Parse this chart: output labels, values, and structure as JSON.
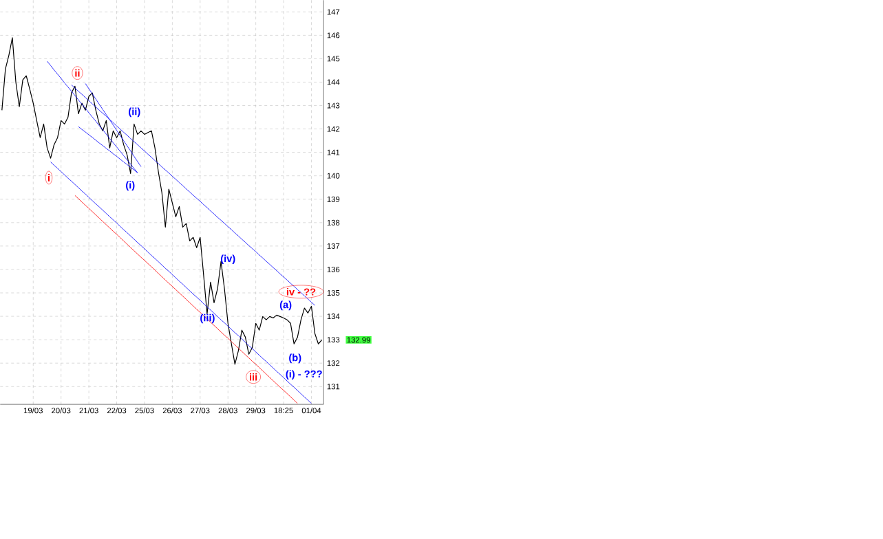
{
  "chart_data": {
    "type": "line",
    "categories": [
      null,
      null,
      null,
      null,
      null,
      null,
      null,
      null,
      null,
      "19/03",
      null,
      null,
      null,
      null,
      null,
      null,
      null,
      "20/03",
      null,
      null,
      null,
      null,
      null,
      null,
      null,
      "21/03",
      null,
      null,
      null,
      null,
      null,
      null,
      null,
      "22/03",
      null,
      null,
      null,
      null,
      null,
      null,
      null,
      "25/03",
      null,
      null,
      null,
      null,
      null,
      null,
      null,
      "26/03",
      null,
      null,
      null,
      null,
      null,
      null,
      null,
      "27/03",
      null,
      null,
      null,
      null,
      null,
      null,
      null,
      "28/03",
      null,
      null,
      null,
      null,
      null,
      null,
      null,
      "29/03",
      null,
      null,
      null,
      null,
      null,
      null,
      null,
      "18:25",
      null,
      null,
      null,
      null,
      null,
      null,
      null,
      "01/04",
      null,
      null,
      null
    ],
    "series": [
      {
        "color": "#000000",
        "values": [
          142.8,
          144.56,
          145.15,
          145.9,
          144.0,
          142.95,
          144.1,
          144.27,
          143.7,
          143.1,
          142.36,
          141.63,
          142.21,
          141.19,
          140.75,
          141.33,
          141.63,
          142.36,
          142.21,
          142.5,
          143.54,
          143.83,
          142.65,
          143.1,
          142.8,
          143.39,
          143.54,
          142.8,
          142.21,
          141.92,
          142.36,
          141.19,
          141.92,
          141.63,
          141.92,
          141.33,
          140.89,
          140.1,
          142.21,
          141.77,
          141.92,
          141.77,
          141.85,
          141.92,
          141.19,
          140.16,
          139.28,
          137.81,
          139.43,
          138.84,
          138.25,
          138.69,
          137.81,
          137.96,
          137.22,
          137.37,
          136.93,
          137.37,
          135.76,
          134.1,
          135.46,
          134.58,
          135.17,
          136.34,
          135.17,
          133.7,
          132.82,
          131.95,
          132.53,
          133.41,
          133.11,
          132.38,
          132.67,
          133.7,
          133.41,
          133.99,
          133.85,
          133.99,
          133.93,
          134.05,
          133.99,
          133.93,
          133.85,
          133.7,
          132.82,
          133.11,
          133.85,
          134.35,
          134.14,
          134.43,
          133.26,
          132.82,
          132.99
        ]
      },
      {
        "color": "#0000ff",
        "values": [
          null,
          null,
          null,
          null,
          null,
          null,
          null,
          null,
          null,
          null,
          null,
          null,
          null,
          144.89,
          144.71,
          144.52,
          144.34,
          144.16,
          143.97,
          143.79,
          143.61,
          143.43,
          143.24,
          143.06,
          142.88,
          142.69,
          142.51,
          142.33,
          142.14,
          141.96,
          141.78,
          141.59,
          141.41,
          141.23,
          141.05,
          140.86,
          140.68,
          140.5,
          140.31,
          140.13,
          null,
          null,
          null,
          null,
          null,
          null,
          null,
          null,
          null,
          null,
          null,
          null,
          null,
          null,
          null,
          null,
          null,
          null,
          null,
          null,
          null,
          null,
          null,
          null,
          null,
          null,
          null,
          null,
          null,
          null,
          null,
          null,
          null,
          null,
          null,
          null,
          null,
          null,
          null,
          null,
          null,
          null,
          null,
          null,
          null,
          null,
          null,
          null,
          null,
          null,
          null,
          null,
          null
        ]
      },
      {
        "color": "#0000ff",
        "values": [
          null,
          null,
          null,
          null,
          null,
          null,
          null,
          null,
          null,
          null,
          null,
          null,
          null,
          null,
          null,
          null,
          null,
          null,
          null,
          null,
          null,
          null,
          null,
          null,
          143.94,
          143.72,
          143.5,
          143.28,
          143.05,
          142.83,
          142.61,
          142.39,
          142.17,
          141.94,
          141.72,
          141.5,
          141.28,
          141.06,
          140.83,
          140.61,
          140.39,
          null,
          null,
          null,
          null,
          null,
          null,
          null,
          null,
          null,
          null,
          null,
          null,
          null,
          null,
          null,
          null,
          null,
          null,
          null,
          null,
          null,
          null,
          null,
          null,
          null,
          null,
          null,
          null,
          null,
          null,
          null,
          null,
          null,
          null,
          null,
          null,
          null,
          null,
          null,
          null,
          null,
          null,
          null,
          null,
          null,
          null,
          null,
          null,
          null,
          null,
          null,
          null
        ]
      },
      {
        "color": "#0000ff",
        "values": [
          null,
          null,
          null,
          null,
          null,
          null,
          null,
          null,
          null,
          null,
          null,
          null,
          null,
          null,
          null,
          null,
          null,
          null,
          null,
          null,
          null,
          null,
          142.1,
          141.98,
          141.87,
          141.75,
          141.64,
          141.52,
          141.4,
          141.29,
          141.17,
          141.06,
          140.94,
          140.83,
          140.71,
          140.59,
          140.48,
          140.36,
          140.25,
          140.13,
          null,
          null,
          null,
          null,
          null,
          null,
          null,
          null,
          null,
          null,
          null,
          null,
          null,
          null,
          null,
          null,
          null,
          null,
          null,
          null,
          null,
          null,
          null,
          null,
          null,
          null,
          null,
          null,
          null,
          null,
          null,
          null,
          null,
          null,
          null,
          null,
          null,
          null,
          null,
          null,
          null,
          null,
          null,
          null,
          null,
          null,
          null,
          null,
          null,
          null,
          null,
          null,
          null
        ]
      },
      {
        "color": "#0000ff",
        "values": [
          null,
          null,
          null,
          null,
          null,
          null,
          null,
          null,
          null,
          null,
          null,
          null,
          null,
          null,
          null,
          null,
          null,
          null,
          null,
          null,
          143.88,
          143.75,
          143.61,
          143.48,
          143.34,
          143.21,
          143.07,
          142.94,
          142.8,
          142.67,
          142.54,
          142.4,
          142.27,
          142.13,
          142.0,
          141.86,
          141.73,
          141.59,
          141.46,
          141.33,
          141.19,
          141.06,
          140.92,
          140.79,
          140.65,
          140.52,
          140.38,
          140.25,
          140.12,
          139.98,
          139.85,
          139.71,
          139.58,
          139.44,
          139.31,
          139.17,
          139.04,
          138.91,
          138.77,
          138.64,
          138.5,
          138.37,
          138.23,
          138.1,
          137.97,
          137.83,
          137.7,
          137.56,
          137.43,
          137.29,
          137.16,
          137.02,
          136.89,
          136.76,
          136.62,
          136.49,
          136.35,
          136.22,
          136.08,
          135.95,
          135.81,
          135.68,
          135.55,
          135.41,
          135.28,
          135.14,
          135.01,
          134.87,
          134.74,
          134.6,
          134.47,
          null,
          null
        ]
      },
      {
        "color": "#0000ff",
        "values": [
          null,
          null,
          null,
          null,
          null,
          null,
          null,
          null,
          null,
          null,
          null,
          null,
          null,
          null,
          140.59,
          140.45,
          140.32,
          140.18,
          140.04,
          139.9,
          139.77,
          139.63,
          139.49,
          139.35,
          139.22,
          139.08,
          138.94,
          138.8,
          138.67,
          138.53,
          138.39,
          138.25,
          138.12,
          137.98,
          137.84,
          137.7,
          137.57,
          137.43,
          137.29,
          137.15,
          137.02,
          136.88,
          136.74,
          136.6,
          136.47,
          136.33,
          136.19,
          136.05,
          135.92,
          135.78,
          135.64,
          135.5,
          135.37,
          135.23,
          135.09,
          134.95,
          134.82,
          134.68,
          134.54,
          134.4,
          134.27,
          134.13,
          133.99,
          133.85,
          133.72,
          133.58,
          133.44,
          133.3,
          133.17,
          133.03,
          132.89,
          132.75,
          132.62,
          132.48,
          132.34,
          132.2,
          132.07,
          131.93,
          131.79,
          131.65,
          131.52,
          131.38,
          131.24,
          131.1,
          130.97,
          130.83,
          130.69,
          130.55,
          130.42,
          130.28,
          null,
          null,
          null
        ]
      },
      {
        "color": "#ff0000",
        "values": [
          null,
          null,
          null,
          null,
          null,
          null,
          null,
          null,
          null,
          null,
          null,
          null,
          null,
          null,
          null,
          null,
          null,
          null,
          null,
          null,
          null,
          139.16,
          139.02,
          138.88,
          138.74,
          138.61,
          138.47,
          138.33,
          138.19,
          138.05,
          137.91,
          137.77,
          137.63,
          137.5,
          137.36,
          137.22,
          137.08,
          136.94,
          136.8,
          136.66,
          136.52,
          136.39,
          136.25,
          136.11,
          135.97,
          135.83,
          135.69,
          135.55,
          135.41,
          135.28,
          135.14,
          135.0,
          134.86,
          134.72,
          134.58,
          134.44,
          134.3,
          134.17,
          134.03,
          133.89,
          133.75,
          133.61,
          133.47,
          133.33,
          133.19,
          133.06,
          132.92,
          132.78,
          132.64,
          132.5,
          132.36,
          132.22,
          132.08,
          131.95,
          131.81,
          131.67,
          131.53,
          131.39,
          131.25,
          131.11,
          130.97,
          130.84,
          130.7,
          130.56,
          130.42,
          130.28,
          null,
          null,
          null,
          null,
          null,
          null,
          null
        ]
      }
    ],
    "annotations": [
      "i",
      "ii",
      "iii",
      "iv - ??",
      "(i)",
      "(ii)",
      "(iii)",
      "(iv)",
      "(a)",
      "(b)",
      "(i) - ???",
      "132.99"
    ],
    "ylim": [
      130.24,
      147.5
    ],
    "yticks": [
      131,
      132,
      133,
      134,
      135,
      136,
      137,
      138,
      139,
      140,
      141,
      142,
      143,
      144,
      145,
      146,
      147
    ],
    "grid": true,
    "marker": "none"
  }
}
